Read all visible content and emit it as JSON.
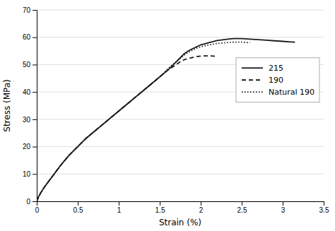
{
  "chart_data": {
    "type": "line",
    "xlabel": "Strain (%)",
    "ylabel": "Stress (MPa)",
    "xlim": [
      0,
      3.5
    ],
    "ylim": [
      0,
      70
    ],
    "xticks": [
      0,
      0.5,
      1,
      1.5,
      2,
      2.5,
      3,
      3.5
    ],
    "yticks": [
      0,
      10,
      20,
      30,
      40,
      50,
      60,
      70
    ],
    "grid": true,
    "legend": "upper right",
    "series": [
      {
        "name": "215",
        "color": "#1a1a1a",
        "line_style": "solid",
        "x": [
          0,
          0.02,
          0.05,
          0.1,
          0.15,
          0.2,
          0.3,
          0.4,
          0.5,
          0.6,
          0.7,
          0.8,
          0.9,
          1.0,
          1.1,
          1.2,
          1.3,
          1.4,
          1.5,
          1.6,
          1.65,
          1.7,
          1.75,
          1.8,
          1.85,
          1.9,
          1.95,
          2.0,
          2.1,
          2.2,
          2.3,
          2.35,
          2.4,
          2.5,
          2.6,
          2.7,
          2.8,
          2.9,
          3.0,
          3.1,
          3.15
        ],
        "values": [
          0,
          1.5,
          3.2,
          5.5,
          7.5,
          9.5,
          13.5,
          17.0,
          20.0,
          23.0,
          25.5,
          28.0,
          30.5,
          33.0,
          35.5,
          38.0,
          40.5,
          43.0,
          45.5,
          48.0,
          49.5,
          51.0,
          52.5,
          54.0,
          55.0,
          55.8,
          56.5,
          57.2,
          58.0,
          58.8,
          59.2,
          59.4,
          59.5,
          59.5,
          59.3,
          59.1,
          58.9,
          58.7,
          58.5,
          58.3,
          58.2
        ]
      },
      {
        "name": "190",
        "color": "#1a1a1a",
        "line_style": "dashed",
        "x": [
          0,
          0.02,
          0.05,
          0.1,
          0.15,
          0.2,
          0.3,
          0.4,
          0.5,
          0.6,
          0.7,
          0.8,
          0.9,
          1.0,
          1.1,
          1.2,
          1.3,
          1.4,
          1.5,
          1.6,
          1.65,
          1.7,
          1.75,
          1.8,
          1.85,
          1.9,
          1.95,
          2.0,
          2.05,
          2.1,
          2.15,
          2.2
        ],
        "values": [
          0,
          1.5,
          3.2,
          5.5,
          7.5,
          9.5,
          13.5,
          17.0,
          20.0,
          23.0,
          25.5,
          28.0,
          30.5,
          33.0,
          35.5,
          38.0,
          40.5,
          43.0,
          45.5,
          48.0,
          49.0,
          50.0,
          51.0,
          51.8,
          52.2,
          52.6,
          52.9,
          53.1,
          53.2,
          53.2,
          53.1,
          53.0
        ]
      },
      {
        "name": "Natural 190",
        "color": "#1a1a1a",
        "line_style": "dotted",
        "x": [
          0,
          0.02,
          0.05,
          0.1,
          0.15,
          0.2,
          0.3,
          0.4,
          0.5,
          0.6,
          0.7,
          0.8,
          0.9,
          1.0,
          1.1,
          1.2,
          1.3,
          1.4,
          1.5,
          1.6,
          1.65,
          1.7,
          1.75,
          1.8,
          1.85,
          1.9,
          1.95,
          2.0,
          2.1,
          2.2,
          2.3,
          2.4,
          2.5,
          2.55,
          2.6
        ],
        "values": [
          0,
          1.5,
          3.2,
          5.5,
          7.5,
          9.5,
          13.5,
          17.0,
          20.0,
          23.0,
          25.5,
          28.0,
          30.5,
          33.0,
          35.5,
          38.0,
          40.5,
          43.0,
          45.5,
          48.5,
          49.8,
          51.0,
          52.2,
          53.5,
          54.5,
          55.3,
          56.0,
          56.5,
          57.2,
          57.7,
          58.0,
          58.2,
          58.2,
          58.1,
          58.0
        ]
      }
    ]
  }
}
